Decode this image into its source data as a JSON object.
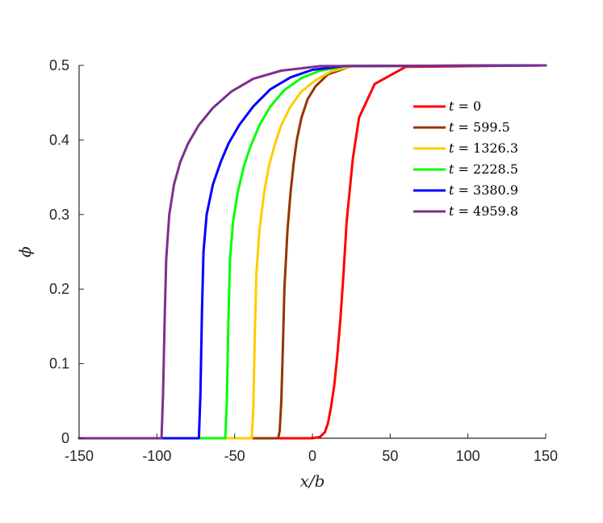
{
  "chart_data": {
    "type": "line",
    "title": "",
    "xlabel": "x/b",
    "ylabel": "ϕ",
    "xlim": [
      -150,
      150
    ],
    "ylim": [
      0,
      0.5
    ],
    "xticks": [
      "-150",
      "-100",
      "-50",
      "0",
      "50",
      "100",
      "150"
    ],
    "xtick_values": [
      -150,
      -100,
      -50,
      0,
      50,
      100,
      150
    ],
    "yticks": [
      "0",
      "0.1",
      "0.2",
      "0.3",
      "0.4",
      "0.5"
    ],
    "ytick_values": [
      0,
      0.1,
      0.2,
      0.3,
      0.4,
      0.5
    ],
    "grid": false,
    "legend_position": "top-right",
    "series": [
      {
        "name": "t = 0",
        "label_var": "t",
        "label_value": "0",
        "color": "#ff0000",
        "x": [
          -150,
          0,
          5,
          8,
          10,
          12,
          14,
          16,
          18,
          20,
          22,
          26,
          30,
          40,
          60,
          150
        ],
        "y": [
          0,
          0,
          0.002,
          0.008,
          0.02,
          0.042,
          0.07,
          0.11,
          0.16,
          0.22,
          0.29,
          0.375,
          0.43,
          0.475,
          0.498,
          0.5
        ]
      },
      {
        "name": "t = 599.5",
        "label_var": "t",
        "label_value": "599.5",
        "color": "#993300",
        "x": [
          -150,
          -22,
          -21,
          -20,
          -19,
          -18,
          -16,
          -14,
          -12,
          -10,
          -7,
          -3,
          2,
          10,
          25,
          150
        ],
        "y": [
          0,
          0,
          0.01,
          0.05,
          0.12,
          0.2,
          0.28,
          0.33,
          0.37,
          0.4,
          0.43,
          0.455,
          0.472,
          0.488,
          0.499,
          0.5
        ]
      },
      {
        "name": "t = 1326.3",
        "label_var": "t",
        "label_value": "1326.3",
        "color": "#ffcc00",
        "x": [
          -150,
          -39,
          -38,
          -37,
          -36,
          -34,
          -31,
          -28,
          -24,
          -20,
          -14,
          -7,
          2,
          12,
          26,
          150
        ],
        "y": [
          0,
          0,
          0.04,
          0.14,
          0.22,
          0.28,
          0.33,
          0.365,
          0.395,
          0.42,
          0.445,
          0.465,
          0.48,
          0.492,
          0.499,
          0.5
        ]
      },
      {
        "name": "t = 2228.5",
        "label_var": "t",
        "label_value": "2228.5",
        "color": "#00ff00",
        "x": [
          -150,
          -56,
          -55,
          -54,
          -53,
          -51,
          -48,
          -44,
          -40,
          -34,
          -27,
          -18,
          -7,
          5,
          22,
          150
        ],
        "y": [
          0,
          0,
          0.05,
          0.16,
          0.24,
          0.29,
          0.33,
          0.365,
          0.39,
          0.42,
          0.445,
          0.467,
          0.483,
          0.493,
          0.499,
          0.5
        ]
      },
      {
        "name": "t = 3380.9",
        "label_var": "t",
        "label_value": "3380.9",
        "color": "#0000ff",
        "x": [
          -150,
          -73,
          -72,
          -71,
          -70,
          -68,
          -64,
          -59,
          -54,
          -47,
          -38,
          -27,
          -14,
          0,
          20,
          150
        ],
        "y": [
          0,
          0,
          0.06,
          0.17,
          0.25,
          0.3,
          0.34,
          0.37,
          0.395,
          0.42,
          0.445,
          0.468,
          0.484,
          0.494,
          0.499,
          0.5
        ]
      },
      {
        "name": "t = 4959.8",
        "label_var": "t",
        "label_value": "4959.8",
        "color": "#7e2f8e",
        "x": [
          -150,
          -97,
          -96,
          -95,
          -94,
          -92,
          -89,
          -85,
          -80,
          -73,
          -64,
          -52,
          -38,
          -20,
          5,
          150
        ],
        "y": [
          0,
          0,
          0.06,
          0.16,
          0.24,
          0.3,
          0.34,
          0.37,
          0.395,
          0.42,
          0.443,
          0.465,
          0.482,
          0.493,
          0.499,
          0.5
        ]
      }
    ]
  }
}
